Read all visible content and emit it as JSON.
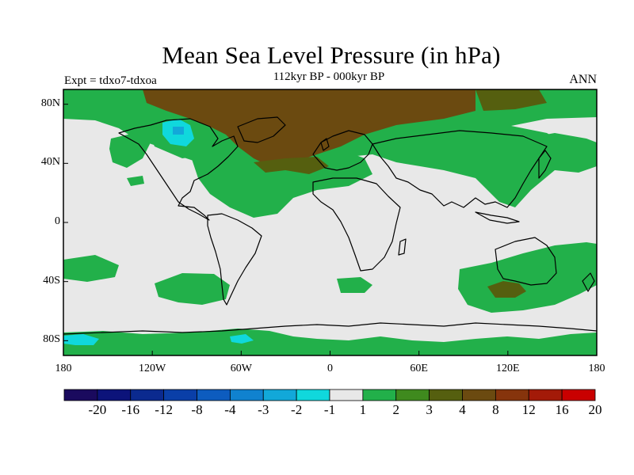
{
  "title": "Mean Sea Level Pressure (in hPa)",
  "subtitle": "112kyr BP - 000kyr BP",
  "experiment": "Expt = tdxo7-tdxoa",
  "season": "ANN",
  "latitude_labels": [
    "80N",
    "40N",
    "0",
    "40S",
    "80S"
  ],
  "latitude_values": [
    80,
    40,
    0,
    -40,
    -80
  ],
  "longitude_labels": [
    "180",
    "120W",
    "60W",
    "0",
    "60E",
    "120E",
    "180"
  ],
  "longitude_values": [
    -180,
    -120,
    -60,
    0,
    60,
    120,
    180
  ],
  "colorbar": {
    "labels": [
      "-20",
      "-16",
      "-12",
      "-8",
      "-4",
      "-3",
      "-2",
      "-1",
      "1",
      "2",
      "3",
      "4",
      "8",
      "12",
      "16",
      "20"
    ],
    "colors": [
      "#1a0a5e",
      "#0c137a",
      "#0b2a8f",
      "#0a3fa8",
      "#0d5cbf",
      "#1082cf",
      "#12a8d9",
      "#10d8dc",
      "#e8e8e8",
      "#22b04a",
      "#3f8a1e",
      "#555f0f",
      "#6b4a10",
      "#86340c",
      "#a31a08",
      "#c90000"
    ]
  },
  "colors": {
    "neutral": "#e8e8e8",
    "green": "#22b04a",
    "olive": "#555f0f",
    "brown": "#6b4a10",
    "cyan": "#10d8dc",
    "coast": "#000000"
  }
}
